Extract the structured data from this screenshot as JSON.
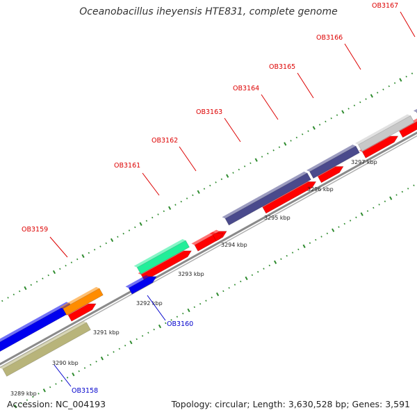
{
  "title": "Oceanobacillus iheyensis HTE831, complete genome",
  "footer": {
    "accession": "Accession: NC_004193",
    "summary": "Topology: circular; Length: 3,630,528 bp; Genes: 3,591"
  },
  "colors": {
    "backbone": "#9a9a9a",
    "tick_green": "#2e8b2e",
    "label_red": "#dd0000",
    "label_blue": "#0000cc",
    "leader_red": "#dd0000",
    "leader_blue": "#0000cc"
  },
  "axis": {
    "unit": "kbp",
    "ticks": [
      3289,
      3290,
      3291,
      3292,
      3293,
      3294,
      3295,
      3296,
      3297
    ]
  },
  "genes": [
    {
      "name": "OB3158",
      "track": "lower",
      "color": "#b8b47a",
      "label_color": "blue"
    },
    {
      "name": "OB3159",
      "track": "upper",
      "color": "#ff8c00",
      "label_color": "red"
    },
    {
      "name": "OB3160",
      "track": "mid",
      "color": "#0000ee",
      "label_color": "blue"
    },
    {
      "name": "OB3161",
      "track": "upper",
      "color": "#22ee99",
      "label_color": "red"
    },
    {
      "name": "OB3162",
      "track": "mid",
      "color": "#ff0000",
      "label_color": "red"
    },
    {
      "name": "OB3163",
      "track": "upper",
      "color": "#4a4a8c",
      "label_color": "red"
    },
    {
      "name": "OB3164",
      "track": "upper",
      "color": "#4a4a8c",
      "label_color": "red"
    },
    {
      "name": "OB3165",
      "track": "upper",
      "color": "#4a4a8c",
      "label_color": "red"
    },
    {
      "name": "OB3166",
      "track": "upper",
      "color": "#c8c8c8",
      "label_color": "red"
    },
    {
      "name": "OB3167",
      "track": "upper",
      "color": "#4a4a8c",
      "label_color": "red"
    }
  ]
}
